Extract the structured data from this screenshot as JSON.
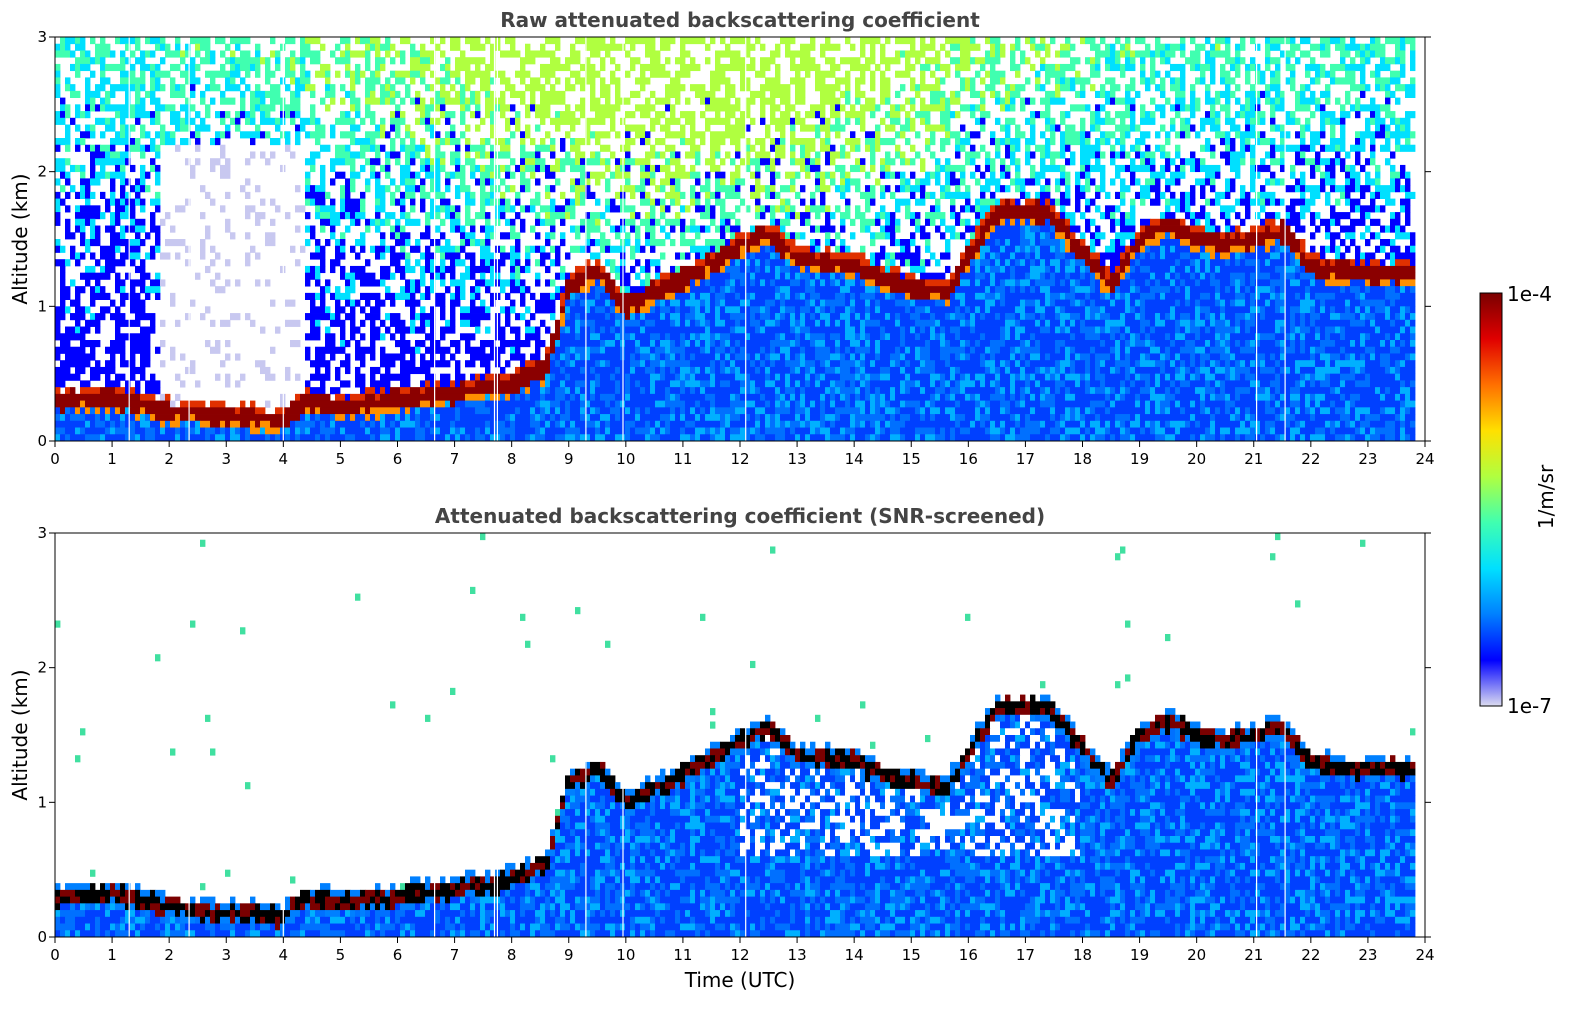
{
  "chart_data": [
    {
      "type": "heatmap",
      "title": "Raw attenuated backscattering coefficient",
      "xlabel": "",
      "ylabel": "Altitude (km)",
      "xlim": [
        0,
        24
      ],
      "ylim": [
        0,
        3
      ],
      "xticks": [
        "0",
        "1",
        "2",
        "3",
        "4",
        "5",
        "6",
        "7",
        "8",
        "9",
        "10",
        "11",
        "12",
        "13",
        "14",
        "15",
        "16",
        "17",
        "18",
        "19",
        "20",
        "21",
        "22",
        "23",
        "24"
      ],
      "yticks": [
        "0",
        "1",
        "2",
        "3"
      ],
      "screened": false,
      "layer_top_km": {
        "time_utc": [
          0,
          1,
          2,
          3,
          4,
          4.4,
          5,
          6,
          7,
          8,
          8.6,
          9,
          9.5,
          10,
          11,
          12,
          12.5,
          13,
          14,
          14.5,
          15,
          15.6,
          16.5,
          17.4,
          18.5,
          19,
          19.5,
          20,
          20.5,
          21,
          21.5,
          22,
          22.5,
          23,
          23.8
        ],
        "altitude_km": [
          0.3,
          0.32,
          0.22,
          0.18,
          0.15,
          0.3,
          0.25,
          0.3,
          0.35,
          0.42,
          0.55,
          1.15,
          1.25,
          1.0,
          1.2,
          1.45,
          1.55,
          1.35,
          1.3,
          1.2,
          1.15,
          1.1,
          1.7,
          1.7,
          1.15,
          1.5,
          1.6,
          1.5,
          1.45,
          1.5,
          1.55,
          1.3,
          1.25,
          1.25,
          1.25
        ]
      },
      "dropout_times_utc": [
        1.3,
        2.35,
        4.0,
        6.65,
        7.7,
        7.75,
        9.3,
        9.95,
        12.1,
        21.05,
        21.55
      ]
    },
    {
      "type": "heatmap",
      "title": "Attenuated backscattering coefficient (SNR-screened)",
      "xlabel": "Time (UTC)",
      "ylabel": "Altitude (km)",
      "xlim": [
        0,
        24
      ],
      "ylim": [
        0,
        3
      ],
      "xticks": [
        "0",
        "1",
        "2",
        "3",
        "4",
        "5",
        "6",
        "7",
        "8",
        "9",
        "10",
        "11",
        "12",
        "13",
        "14",
        "15",
        "16",
        "17",
        "18",
        "19",
        "20",
        "21",
        "22",
        "23",
        "24"
      ],
      "yticks": [
        "0",
        "1",
        "2",
        "3"
      ],
      "screened": true,
      "layer_top_km": {
        "time_utc": [
          0,
          1,
          2,
          3,
          4,
          4.4,
          5,
          6,
          7,
          8,
          8.6,
          9,
          9.5,
          10,
          11,
          12,
          12.5,
          13,
          14,
          14.5,
          15,
          15.6,
          16.5,
          17.4,
          18.5,
          19,
          19.5,
          20,
          20.5,
          21,
          21.5,
          22,
          22.5,
          23,
          23.8
        ],
        "altitude_km": [
          0.3,
          0.32,
          0.22,
          0.18,
          0.15,
          0.3,
          0.25,
          0.3,
          0.35,
          0.42,
          0.55,
          1.15,
          1.25,
          1.0,
          1.2,
          1.45,
          1.55,
          1.35,
          1.3,
          1.2,
          1.15,
          1.1,
          1.7,
          1.7,
          1.15,
          1.5,
          1.6,
          1.5,
          1.45,
          1.5,
          1.55,
          1.3,
          1.25,
          1.25,
          1.25
        ]
      },
      "dropout_times_utc": [
        1.3,
        2.35,
        4.0,
        6.65,
        7.7,
        7.75,
        9.3,
        9.95,
        12.1,
        21.05,
        21.55
      ]
    }
  ],
  "colorbar": {
    "label": "1/m/sr",
    "max_label": "1e-4",
    "min_label": "1e-7",
    "scale": "log",
    "colormap": "jet",
    "colors": [
      "#dcdcf0",
      "#0000ff",
      "#0080ff",
      "#00e0ff",
      "#40ffb0",
      "#b0ff40",
      "#ffe000",
      "#ff7000",
      "#e00000",
      "#7a0000"
    ]
  }
}
